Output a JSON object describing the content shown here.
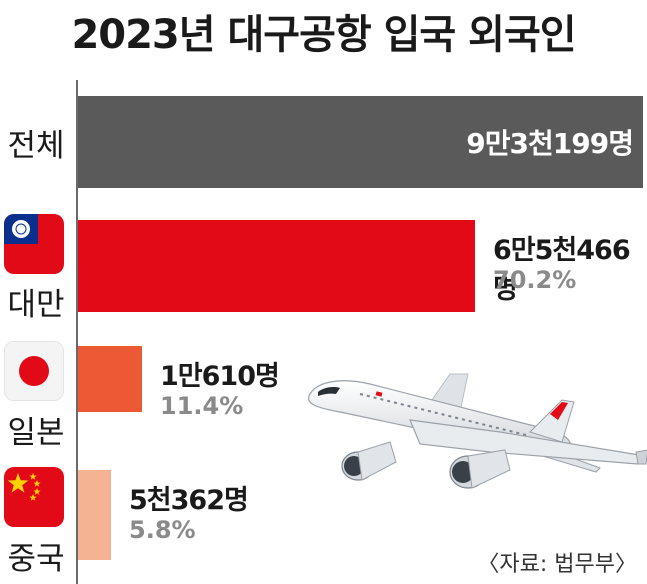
{
  "chart_data": {
    "type": "bar",
    "title": "2023년 대구공항 입국 외국인",
    "categories": [
      "전체",
      "대만",
      "일본",
      "중국"
    ],
    "values": [
      93199,
      65466,
      10610,
      5362
    ],
    "value_labels": [
      "9만3천199명",
      "6만5천466명",
      "1만610명",
      "5천362명"
    ],
    "share_labels": [
      "",
      "70.2%",
      "11.4%",
      "5.8%"
    ],
    "colors": [
      "#5a5a5a",
      "#e30a17",
      "#ec5a35",
      "#f4b393"
    ],
    "orientation": "horizontal",
    "xlim": [
      0,
      93199
    ]
  },
  "source": "〈자료: 법무부〉",
  "icons": [
    "taiwan-flag-icon",
    "japan-flag-icon",
    "china-flag-icon",
    "airplane-icon"
  ]
}
